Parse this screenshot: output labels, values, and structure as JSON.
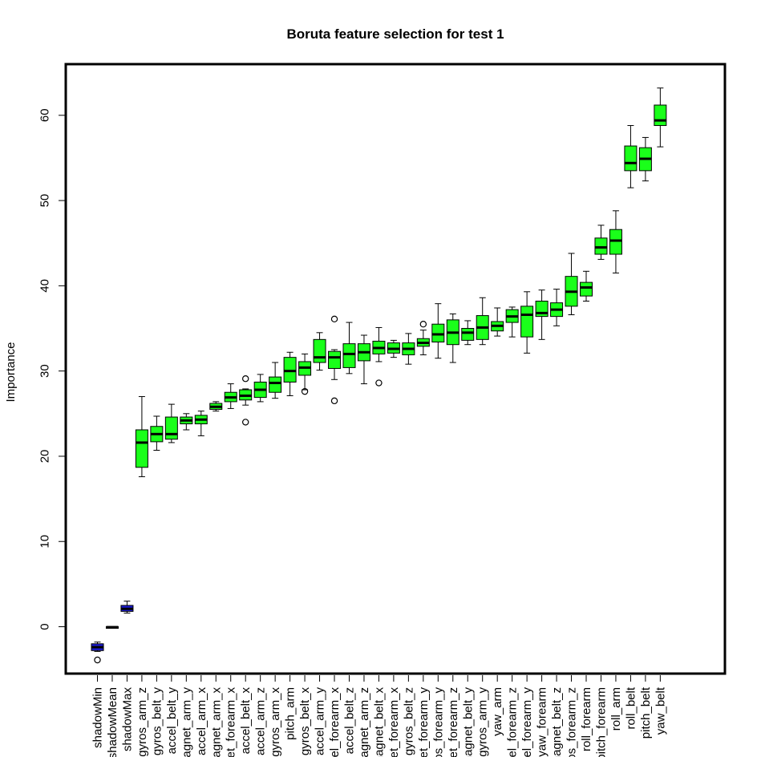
{
  "chart_data": {
    "type": "boxplot",
    "title": "Boruta feature selection for test 1",
    "xlabel": "",
    "ylabel": "Importance",
    "ylim": [
      -5.5,
      66
    ],
    "yticks": [
      0,
      10,
      20,
      30,
      40,
      50,
      60
    ],
    "grid": false,
    "legend": "none",
    "colors": {
      "shadow": "#1a1ad6",
      "confirmed": "#1aff1a",
      "median": "#000000",
      "outline": "#000000"
    },
    "boxes": [
      {
        "label": "shadowMin",
        "group": "shadow",
        "whisker_low": -2.9,
        "q1": -2.8,
        "median": -2.4,
        "q3": -2.0,
        "whisker_high": -1.8,
        "outliers": [
          -3.9
        ]
      },
      {
        "label": "shadowMean",
        "group": "shadow",
        "whisker_low": -0.1,
        "q1": -0.1,
        "median": -0.05,
        "q3": 0.0,
        "whisker_high": 0.0,
        "outliers": []
      },
      {
        "label": "shadowMax",
        "group": "shadow",
        "whisker_low": 1.6,
        "q1": 1.8,
        "median": 2.1,
        "q3": 2.5,
        "whisker_high": 3.0,
        "outliers": []
      },
      {
        "label": "gyros_arm_z",
        "group": "confirmed",
        "whisker_low": 17.6,
        "q1": 18.7,
        "median": 21.6,
        "q3": 23.1,
        "whisker_high": 27.0,
        "outliers": []
      },
      {
        "label": "gyros_belt_y",
        "group": "confirmed",
        "whisker_low": 20.7,
        "q1": 21.7,
        "median": 22.6,
        "q3": 23.5,
        "whisker_high": 24.7,
        "outliers": []
      },
      {
        "label": "accel_belt_y",
        "group": "confirmed",
        "whisker_low": 21.6,
        "q1": 22.0,
        "median": 22.6,
        "q3": 24.6,
        "whisker_high": 26.1,
        "outliers": []
      },
      {
        "label": "magnet_arm_y",
        "group": "confirmed",
        "whisker_low": 23.1,
        "q1": 23.8,
        "median": 24.2,
        "q3": 24.6,
        "whisker_high": 25.0,
        "outliers": []
      },
      {
        "label": "accel_arm_x",
        "group": "confirmed",
        "whisker_low": 22.4,
        "q1": 23.8,
        "median": 24.3,
        "q3": 24.8,
        "whisker_high": 25.3,
        "outliers": []
      },
      {
        "label": "magnet_arm_x",
        "group": "confirmed",
        "whisker_low": 25.3,
        "q1": 25.5,
        "median": 25.8,
        "q3": 26.2,
        "whisker_high": 26.4,
        "outliers": []
      },
      {
        "label": "magnet_forearm_x",
        "group": "confirmed",
        "whisker_low": 25.6,
        "q1": 26.4,
        "median": 26.9,
        "q3": 27.5,
        "whisker_high": 28.5,
        "outliers": []
      },
      {
        "label": "accel_belt_x",
        "group": "confirmed",
        "whisker_low": 26.0,
        "q1": 26.6,
        "median": 27.1,
        "q3": 27.8,
        "whisker_high": 27.9,
        "outliers": [
          24.0,
          29.1
        ]
      },
      {
        "label": "accel_arm_z",
        "group": "confirmed",
        "whisker_low": 26.4,
        "q1": 26.9,
        "median": 27.8,
        "q3": 28.7,
        "whisker_high": 29.6,
        "outliers": []
      },
      {
        "label": "gyros_arm_x",
        "group": "confirmed",
        "whisker_low": 26.8,
        "q1": 27.5,
        "median": 28.6,
        "q3": 29.3,
        "whisker_high": 31.0,
        "outliers": []
      },
      {
        "label": "pitch_arm",
        "group": "confirmed",
        "whisker_low": 27.1,
        "q1": 28.7,
        "median": 30.0,
        "q3": 31.6,
        "whisker_high": 32.2,
        "outliers": []
      },
      {
        "label": "gyros_belt_x",
        "group": "confirmed",
        "whisker_low": 27.8,
        "q1": 29.5,
        "median": 30.4,
        "q3": 31.1,
        "whisker_high": 32.0,
        "outliers": [
          27.6
        ]
      },
      {
        "label": "accel_arm_y",
        "group": "confirmed",
        "whisker_low": 30.1,
        "q1": 31.0,
        "median": 31.6,
        "q3": 33.7,
        "whisker_high": 34.5,
        "outliers": []
      },
      {
        "label": "accel_forearm_x",
        "group": "confirmed",
        "whisker_low": 29.0,
        "q1": 30.3,
        "median": 31.6,
        "q3": 32.3,
        "whisker_high": 32.5,
        "outliers": [
          26.5,
          36.1
        ]
      },
      {
        "label": "accel_belt_z",
        "group": "confirmed",
        "whisker_low": 29.7,
        "q1": 30.4,
        "median": 32.0,
        "q3": 33.2,
        "whisker_high": 35.7,
        "outliers": []
      },
      {
        "label": "magnet_arm_z",
        "group": "confirmed",
        "whisker_low": 28.5,
        "q1": 31.2,
        "median": 32.2,
        "q3": 33.2,
        "whisker_high": 34.2,
        "outliers": []
      },
      {
        "label": "magnet_belt_x",
        "group": "confirmed",
        "whisker_low": 31.1,
        "q1": 32.0,
        "median": 32.7,
        "q3": 33.5,
        "whisker_high": 35.1,
        "outliers": [
          28.6
        ]
      },
      {
        "label": "magnet_forearm_x",
        "group": "confirmed",
        "whisker_low": 31.6,
        "q1": 32.1,
        "median": 32.6,
        "q3": 33.3,
        "whisker_high": 33.6,
        "outliers": []
      },
      {
        "label": "gyros_belt_z",
        "group": "confirmed",
        "whisker_low": 30.8,
        "q1": 31.9,
        "median": 32.6,
        "q3": 33.3,
        "whisker_high": 34.4,
        "outliers": []
      },
      {
        "label": "magnet_forearm_y",
        "group": "confirmed",
        "whisker_low": 31.9,
        "q1": 32.9,
        "median": 33.3,
        "q3": 33.8,
        "whisker_high": 34.8,
        "outliers": [
          35.5
        ]
      },
      {
        "label": "gyros_forearm_y",
        "group": "confirmed",
        "whisker_low": 31.5,
        "q1": 33.4,
        "median": 34.3,
        "q3": 35.5,
        "whisker_high": 37.9,
        "outliers": []
      },
      {
        "label": "magnet_forearm_z",
        "group": "confirmed",
        "whisker_low": 31.0,
        "q1": 33.1,
        "median": 34.5,
        "q3": 36.0,
        "whisker_high": 36.7,
        "outliers": []
      },
      {
        "label": "magnet_belt_y",
        "group": "confirmed",
        "whisker_low": 33.1,
        "q1": 33.6,
        "median": 34.5,
        "q3": 35.0,
        "whisker_high": 35.9,
        "outliers": []
      },
      {
        "label": "gyros_arm_y",
        "group": "confirmed",
        "whisker_low": 33.1,
        "q1": 33.7,
        "median": 35.1,
        "q3": 36.5,
        "whisker_high": 38.6,
        "outliers": []
      },
      {
        "label": "yaw_arm",
        "group": "confirmed",
        "whisker_low": 34.1,
        "q1": 34.7,
        "median": 35.3,
        "q3": 35.8,
        "whisker_high": 37.4,
        "outliers": []
      },
      {
        "label": "accel_forearm_z",
        "group": "confirmed",
        "whisker_low": 34.0,
        "q1": 35.7,
        "median": 36.4,
        "q3": 37.2,
        "whisker_high": 37.5,
        "outliers": []
      },
      {
        "label": "accel_forearm_y",
        "group": "confirmed",
        "whisker_low": 32.1,
        "q1": 34.0,
        "median": 36.6,
        "q3": 37.6,
        "whisker_high": 39.3,
        "outliers": []
      },
      {
        "label": "yaw_forearm",
        "group": "confirmed",
        "whisker_low": 33.7,
        "q1": 36.4,
        "median": 36.8,
        "q3": 38.2,
        "whisker_high": 39.5,
        "outliers": []
      },
      {
        "label": "magnet_belt_z",
        "group": "confirmed",
        "whisker_low": 35.3,
        "q1": 36.4,
        "median": 37.2,
        "q3": 38.0,
        "whisker_high": 39.6,
        "outliers": []
      },
      {
        "label": "gyros_forearm_z",
        "group": "confirmed",
        "whisker_low": 36.6,
        "q1": 37.6,
        "median": 39.3,
        "q3": 41.1,
        "whisker_high": 43.8,
        "outliers": []
      },
      {
        "label": "roll_forearm",
        "group": "confirmed",
        "whisker_low": 38.2,
        "q1": 38.8,
        "median": 39.8,
        "q3": 40.4,
        "whisker_high": 41.7,
        "outliers": []
      },
      {
        "label": "pitch_forearm",
        "group": "confirmed",
        "whisker_low": 43.1,
        "q1": 43.7,
        "median": 44.5,
        "q3": 45.6,
        "whisker_high": 47.1,
        "outliers": []
      },
      {
        "label": "roll_arm",
        "group": "confirmed",
        "whisker_low": 41.5,
        "q1": 43.7,
        "median": 45.3,
        "q3": 46.6,
        "whisker_high": 48.8,
        "outliers": []
      },
      {
        "label": "roll_belt",
        "group": "confirmed",
        "whisker_low": 51.5,
        "q1": 53.5,
        "median": 54.4,
        "q3": 56.4,
        "whisker_high": 58.8,
        "outliers": []
      },
      {
        "label": "pitch_belt",
        "group": "confirmed",
        "whisker_low": 52.3,
        "q1": 53.5,
        "median": 54.9,
        "q3": 56.2,
        "whisker_high": 57.4,
        "outliers": []
      },
      {
        "label": "yaw_belt",
        "group": "confirmed",
        "whisker_low": 56.3,
        "q1": 58.8,
        "median": 59.4,
        "q3": 61.2,
        "whisker_high": 63.2,
        "outliers": []
      }
    ]
  }
}
